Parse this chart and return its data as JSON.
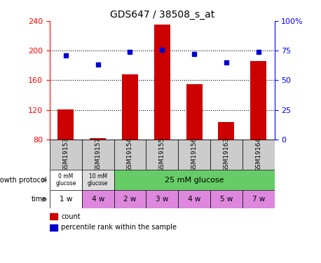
{
  "title": "GDS647 / 38508_s_at",
  "samples": [
    "GSM19153",
    "GSM19157",
    "GSM19154",
    "GSM19155",
    "GSM19156",
    "GSM19163",
    "GSM19164"
  ],
  "counts": [
    121,
    82,
    168,
    235,
    155,
    103,
    186
  ],
  "percentiles": [
    71,
    63,
    74,
    76,
    72,
    65,
    74
  ],
  "ylim_left": [
    80,
    240
  ],
  "ylim_right": [
    0,
    100
  ],
  "yticks_left": [
    80,
    120,
    160,
    200,
    240
  ],
  "yticks_right": [
    0,
    25,
    50,
    75,
    100
  ],
  "ytick_labels_right": [
    "0",
    "25",
    "50",
    "75",
    "100%"
  ],
  "dotted_lines": [
    120,
    160,
    200
  ],
  "bar_color": "#cc0000",
  "dot_color": "#0000cc",
  "sample_bg": "#cccccc",
  "growth_cell_colors": [
    "#ffffff",
    "#dddddd",
    "#66cc66"
  ],
  "growth_texts": [
    "0 mM\nglucose",
    "10 mM\nglucose",
    "25 mM glucose"
  ],
  "time_labels": [
    "1 w",
    "4 w",
    "2 w",
    "3 w",
    "4 w",
    "5 w",
    "7 w"
  ],
  "time_colors": [
    "#ffffff",
    "#dd88dd",
    "#dd88dd",
    "#dd88dd",
    "#dd88dd",
    "#dd88dd",
    "#dd88dd"
  ],
  "label_gp": "growth protocol",
  "label_time": "time",
  "legend_count": "count",
  "legend_perc": "percentile rank within the sample"
}
